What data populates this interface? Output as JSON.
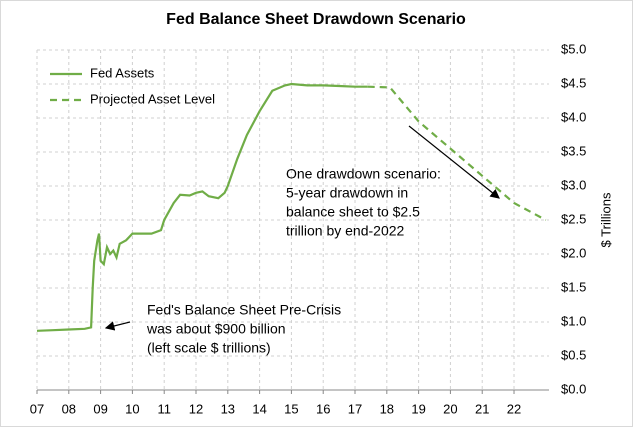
{
  "chart_data": {
    "type": "line",
    "title": "Fed Balance Sheet Drawdown Scenario",
    "y_label": "$ Trillions",
    "series": [
      {
        "name": "Fed Assets",
        "color": "#70ad47",
        "dashed": false,
        "x": [
          7.0,
          7.5,
          8.0,
          8.5,
          8.7,
          8.75,
          8.8,
          8.9,
          8.95,
          9.0,
          9.1,
          9.2,
          9.3,
          9.4,
          9.5,
          9.6,
          9.8,
          10.0,
          10.3,
          10.6,
          10.9,
          11.0,
          11.3,
          11.5,
          11.8,
          12.0,
          12.2,
          12.4,
          12.7,
          12.9,
          13.0,
          13.3,
          13.6,
          14.0,
          14.4,
          14.8,
          15.0,
          15.5,
          16.0,
          16.5,
          17.0,
          17.4
        ],
        "values": [
          0.87,
          0.88,
          0.89,
          0.9,
          0.92,
          1.5,
          1.9,
          2.2,
          2.3,
          1.9,
          1.85,
          2.1,
          2.0,
          2.05,
          1.95,
          2.15,
          2.2,
          2.3,
          2.3,
          2.3,
          2.35,
          2.5,
          2.75,
          2.87,
          2.86,
          2.9,
          2.92,
          2.85,
          2.82,
          2.9,
          3.0,
          3.4,
          3.75,
          4.1,
          4.4,
          4.48,
          4.5,
          4.48,
          4.48,
          4.47,
          4.46,
          4.46
        ]
      },
      {
        "name": "Projected Asset Level",
        "color": "#70ad47",
        "dashed": true,
        "x": [
          17.4,
          18.1,
          19.0,
          20.0,
          21.0,
          22.0,
          23.0
        ],
        "values": [
          4.46,
          4.45,
          3.95,
          3.55,
          3.15,
          2.75,
          2.5
        ]
      }
    ],
    "xlim": [
      7,
      23.1
    ],
    "xticks": [
      {
        "value": 7,
        "label": "07"
      },
      {
        "value": 8,
        "label": "08"
      },
      {
        "value": 9,
        "label": "09"
      },
      10,
      11,
      12,
      13,
      14,
      15,
      16,
      17,
      18,
      19,
      20,
      21,
      22
    ],
    "ylim": [
      0,
      5
    ],
    "yticks": [
      {
        "value": 0,
        "label": "$0.0"
      },
      {
        "value": 0.5,
        "label": "$0.5"
      },
      {
        "value": 1,
        "label": "$1.0"
      },
      {
        "value": 1.5,
        "label": "$1.5"
      },
      {
        "value": 2,
        "label": "$2.0"
      },
      {
        "value": 2.5,
        "label": "$2.5"
      },
      {
        "value": 3,
        "label": "$3.0"
      },
      {
        "value": 3.5,
        "label": "$3.5"
      },
      {
        "value": 4,
        "label": "$4.0"
      },
      {
        "value": 4.5,
        "label": "$4.5"
      },
      {
        "value": 5,
        "label": "$5.0"
      }
    ],
    "grid": true,
    "legend": "top-left",
    "annotations": [
      {
        "lines": [
          "One drawdown  scenario:",
          "5-year drawdown  in",
          "balance sheet to $2.5",
          "trillion by end-2022"
        ]
      },
      {
        "lines": [
          "Fed's Balance Sheet Pre-Crisis",
          "was about  $900 billion",
          "(left scale $ trillions)"
        ]
      }
    ]
  }
}
